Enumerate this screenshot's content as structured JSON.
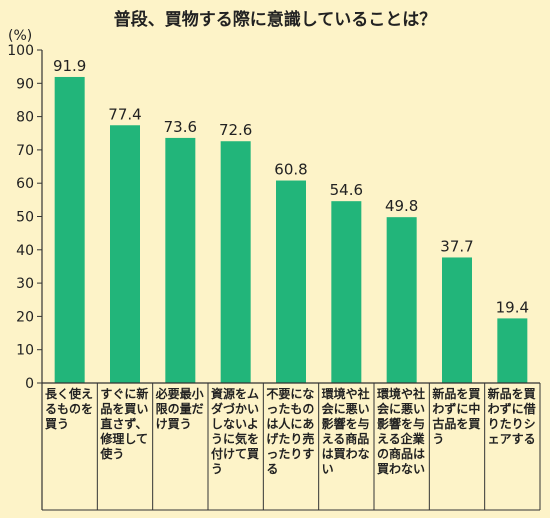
{
  "chart_data": {
    "type": "bar",
    "title": "普段、買物する際に意識していることは？",
    "ylabel": "(%)",
    "ylim": [
      0,
      100
    ],
    "yticks": [
      0,
      10,
      20,
      30,
      40,
      50,
      60,
      70,
      80,
      90,
      100
    ],
    "grid": false,
    "categories": [
      "長く使えるものを買う",
      "すぐに新品を買い直さず、修理して使う",
      "必要最小限の量だけ買う",
      "資源をムダづかいしないように気を付けて買う",
      "不要になったものは人にあげたり売ったりする",
      "環境や社会に悪い影響を与える商品は買わない",
      "環境や社会に悪い影響を与える企業の商品は買わない",
      "新品を買わずに中古品を買う",
      "新品を買わずに借りたりシェアする"
    ],
    "values": [
      91.9,
      77.4,
      73.6,
      72.6,
      60.8,
      54.6,
      49.8,
      37.7,
      19.4
    ],
    "value_labels": [
      "91.9",
      "77.4",
      "73.6",
      "72.6",
      "60.8",
      "54.6",
      "49.8",
      "37.7",
      "19.4"
    ],
    "colors": {
      "background": "#fdf3c8",
      "bar": "#22b57a",
      "axis": "#333333",
      "text": "#222222"
    }
  }
}
